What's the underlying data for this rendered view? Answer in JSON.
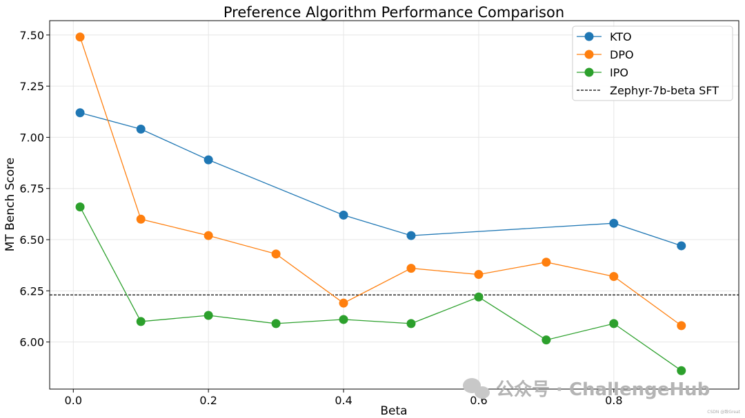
{
  "chart_data": {
    "type": "line",
    "title": "Preference Algorithm Performance Comparison",
    "xlabel": "Beta",
    "ylabel": "MT Bench Score",
    "xlim": [
      -0.035,
      0.985
    ],
    "ylim": [
      5.77,
      7.57
    ],
    "xticks": [
      0.0,
      0.2,
      0.4,
      0.6,
      0.8
    ],
    "xtick_labels": [
      "0.0",
      "0.2",
      "0.4",
      "0.6",
      "0.8"
    ],
    "yticks": [
      6.0,
      6.25,
      6.5,
      6.75,
      7.0,
      7.25,
      7.5
    ],
    "ytick_labels": [
      "6.00",
      "6.25",
      "6.50",
      "6.75",
      "7.00",
      "7.25",
      "7.50"
    ],
    "grid": true,
    "legend_position": "top-right",
    "series": [
      {
        "name": "KTO",
        "color": "#1f77b4",
        "x": [
          0.01,
          0.2,
          0.4,
          0.5,
          0.8,
          0.9
        ],
        "y": [
          7.12,
          6.89,
          6.62,
          6.52,
          6.58,
          6.47
        ],
        "x_full": [
          0.01,
          0.1,
          0.2,
          0.4,
          0.5,
          0.8,
          0.9
        ],
        "y_full": [
          7.12,
          7.04,
          6.89,
          6.62,
          6.52,
          6.58,
          6.47
        ]
      },
      {
        "name": "DPO",
        "color": "#ff7f0e",
        "x": [
          0.01,
          0.1,
          0.2,
          0.3,
          0.4,
          0.5,
          0.6,
          0.7,
          0.8,
          0.9
        ],
        "y": [
          7.49,
          6.6,
          6.52,
          6.43,
          6.19,
          6.36,
          6.33,
          6.39,
          6.32,
          6.08
        ]
      },
      {
        "name": "IPO",
        "color": "#2ca02c",
        "x": [
          0.01,
          0.1,
          0.2,
          0.3,
          0.4,
          0.5,
          0.6,
          0.7,
          0.8,
          0.9
        ],
        "y": [
          6.66,
          6.1,
          6.13,
          6.09,
          6.11,
          6.09,
          6.22,
          6.01,
          6.09,
          5.86
        ]
      }
    ],
    "reference_line": {
      "name": "Zephyr-7b-beta SFT",
      "y": 6.23,
      "style": "dashed",
      "color": "#000000"
    }
  },
  "watermark": {
    "text": "公众号 · ChallengeHub",
    "icon": "wechat-icon"
  },
  "credit": "CSDN @致Great"
}
